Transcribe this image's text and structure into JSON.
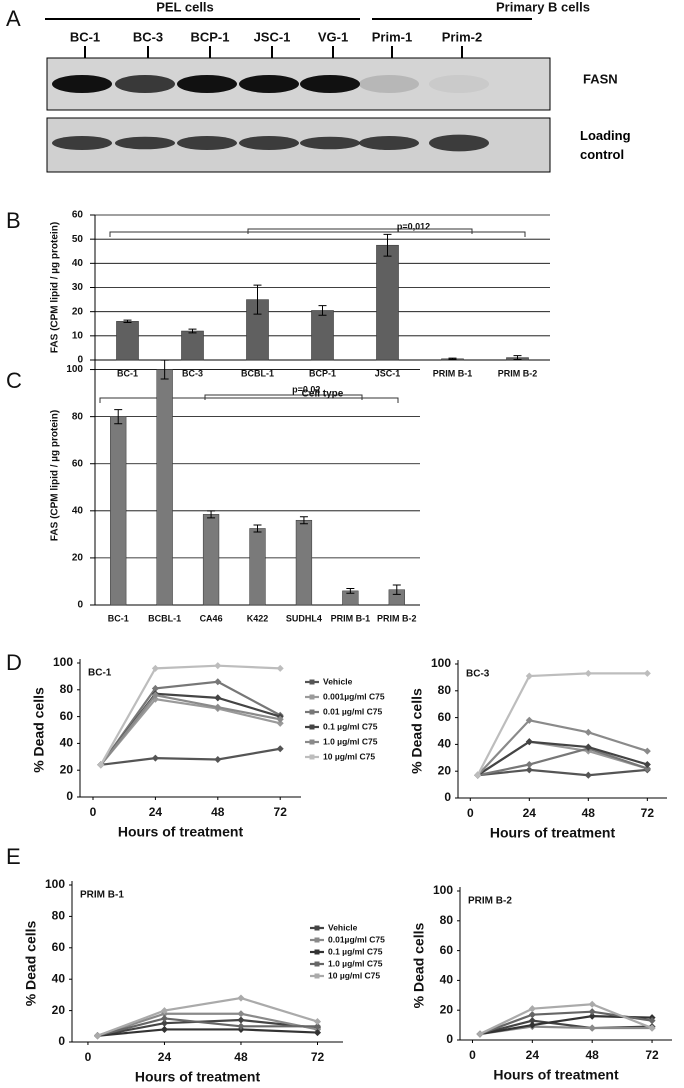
{
  "panel_labels": [
    "A",
    "B",
    "C",
    "D",
    "E"
  ],
  "blot": {
    "groups": [
      "PEL cells",
      "Primary B cells"
    ],
    "lanes": [
      "BC-1",
      "BC-3",
      "BCP-1",
      "JSC-1",
      "VG-1",
      "Prim-1",
      "Prim-2"
    ],
    "rows": [
      "FASN",
      "Loading control"
    ]
  },
  "chart_data": [
    {
      "type": "bar",
      "xlabel": "Cell type",
      "ylabel": "FAS  (CPM lipid / µg protein)",
      "annotation": "p=0,012",
      "categories": [
        "BC-1",
        "BC-3",
        "BCBL-1",
        "BCP-1",
        "JSC-1",
        "PRIM B-1",
        "PRIM B-2"
      ],
      "values": [
        16,
        12,
        25,
        20.5,
        47.5,
        0.5,
        1
      ],
      "error": [
        0.5,
        0.8,
        6,
        2,
        4.5,
        0.3,
        0.8
      ],
      "color": "#606060",
      "ylim": [
        0,
        60
      ],
      "yticks": [
        0,
        10,
        20,
        30,
        40,
        50,
        60
      ],
      "grid": true
    },
    {
      "type": "bar",
      "ylabel": "FAS  (CPM lipid / µg protein)",
      "annotation": "p=0.02",
      "categories": [
        "BC-1",
        "BCBL-1",
        "CA46",
        "K422",
        "SUDHL4",
        "PRIM B-1",
        "PRIM B-2"
      ],
      "values": [
        80,
        100,
        38.5,
        32.5,
        36,
        6,
        6.5
      ],
      "error": [
        3,
        4,
        1.5,
        1.5,
        1.5,
        1,
        2
      ],
      "color": "#7a7a7a",
      "ylim": [
        0,
        110
      ],
      "yticks": [
        0,
        20,
        40,
        60,
        80,
        100
      ],
      "grid": true
    },
    {
      "type": "line",
      "title": "BC-1",
      "xlabel": "Hours of treatment",
      "ylabel": "% Dead cells",
      "x": [
        3,
        24,
        48,
        72
      ],
      "xlim": [
        -5,
        80
      ],
      "xticks": [
        0,
        24,
        48,
        72
      ],
      "ylim": [
        0,
        100
      ],
      "yticks": [
        0,
        20,
        40,
        60,
        80,
        100
      ],
      "series": [
        {
          "name": "Vehicle",
          "color": "#555555",
          "values": [
            24,
            29,
            28,
            36
          ]
        },
        {
          "name": "0.001µg/ml C75",
          "color": "#9a9a9a",
          "values": [
            24,
            73,
            66,
            55
          ]
        },
        {
          "name": "0.01 µg/ml C75",
          "color": "#777777",
          "values": [
            24,
            81,
            86,
            61
          ]
        },
        {
          "name": "0.1 µg/ml C75",
          "color": "#444444",
          "values": [
            24,
            77,
            74,
            60
          ]
        },
        {
          "name": "1.0 µg/ml C75",
          "color": "#8a8a8a",
          "values": [
            24,
            76,
            67,
            58
          ]
        },
        {
          "name": "10 µg/ml C75",
          "color": "#bdbdbd",
          "values": [
            24,
            96,
            98,
            96
          ]
        }
      ]
    },
    {
      "type": "line",
      "title": "BC-3",
      "xlabel": "Hours of treatment",
      "ylabel": "% Dead cells",
      "x": [
        3,
        24,
        48,
        72
      ],
      "xlim": [
        -5,
        80
      ],
      "xticks": [
        0,
        24,
        48,
        72
      ],
      "ylim": [
        0,
        100
      ],
      "yticks": [
        0,
        20,
        40,
        60,
        80,
        100
      ],
      "series": [
        {
          "color": "#555555",
          "values": [
            17,
            21,
            17,
            21
          ]
        },
        {
          "color": "#9a9a9a",
          "values": [
            17,
            42,
            35,
            22
          ]
        },
        {
          "color": "#777777",
          "values": [
            17,
            25,
            37,
            22
          ]
        },
        {
          "color": "#444444",
          "values": [
            17,
            42,
            38,
            25
          ]
        },
        {
          "color": "#8a8a8a",
          "values": [
            17,
            58,
            49,
            35
          ]
        },
        {
          "color": "#bdbdbd",
          "values": [
            17,
            91,
            93,
            93
          ]
        }
      ]
    },
    {
      "type": "line",
      "title": "PRIM B-1",
      "xlabel": "Hours of treatment",
      "ylabel": "% Dead cells",
      "x": [
        3,
        24,
        48,
        72
      ],
      "xlim": [
        -5,
        80
      ],
      "xticks": [
        0,
        24,
        48,
        72
      ],
      "ylim": [
        0,
        100
      ],
      "yticks": [
        0,
        20,
        40,
        60,
        80,
        100
      ],
      "series": [
        {
          "name": "Vehicle",
          "color": "#444444",
          "values": [
            4,
            12,
            14,
            9
          ]
        },
        {
          "name": "0.01µg/ml C75",
          "color": "#8a8a8a",
          "values": [
            4,
            18,
            18,
            8
          ]
        },
        {
          "name": "0.1 µg/ml C75",
          "color": "#333333",
          "values": [
            4,
            8,
            8,
            6
          ]
        },
        {
          "name": "1.0 µg/ml C75",
          "color": "#666666",
          "values": [
            4,
            15,
            10,
            10
          ]
        },
        {
          "name": "10 µg/ml C75",
          "color": "#aaaaaa",
          "values": [
            4,
            20,
            28,
            13
          ]
        }
      ]
    },
    {
      "type": "line",
      "title": "PRIM B-2",
      "xlabel": "Hours of treatment",
      "ylabel": "% Dead cells",
      "x": [
        3,
        24,
        48,
        72
      ],
      "xlim": [
        -5,
        80
      ],
      "xticks": [
        0,
        24,
        48,
        72
      ],
      "ylim": [
        0,
        100
      ],
      "yticks": [
        0,
        20,
        40,
        60,
        80,
        100
      ],
      "series": [
        {
          "color": "#444444",
          "values": [
            4,
            13,
            8,
            9
          ]
        },
        {
          "color": "#8a8a8a",
          "values": [
            4,
            9,
            8,
            8
          ]
        },
        {
          "color": "#333333",
          "values": [
            4,
            10,
            16,
            15
          ]
        },
        {
          "color": "#666666",
          "values": [
            4,
            17,
            19,
            13
          ]
        },
        {
          "color": "#aaaaaa",
          "values": [
            4,
            21,
            24,
            8
          ]
        }
      ]
    }
  ]
}
